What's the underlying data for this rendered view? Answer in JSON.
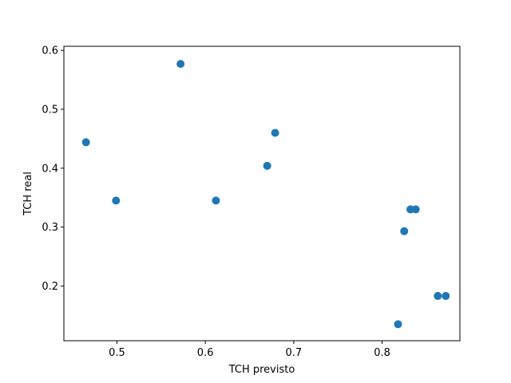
{
  "chart_data": {
    "type": "scatter",
    "title": "",
    "xlabel": "TCH previsto",
    "ylabel": "TCH real",
    "xlim": [
      0.44,
      0.888
    ],
    "ylim": [
      0.107,
      0.607
    ],
    "xticks": [
      0.5,
      0.6,
      0.7,
      0.8
    ],
    "yticks": [
      0.2,
      0.3,
      0.4,
      0.5,
      0.6
    ],
    "xtick_labels": [
      "0.5",
      "0.6",
      "0.7",
      "0.8"
    ],
    "ytick_labels": [
      "0.2",
      "0.3",
      "0.4",
      "0.5",
      "0.6"
    ],
    "grid": false,
    "marker_color": "#1f77b4",
    "points": [
      {
        "x": 0.465,
        "y": 0.444
      },
      {
        "x": 0.499,
        "y": 0.345
      },
      {
        "x": 0.572,
        "y": 0.577
      },
      {
        "x": 0.612,
        "y": 0.345
      },
      {
        "x": 0.67,
        "y": 0.404
      },
      {
        "x": 0.679,
        "y": 0.46
      },
      {
        "x": 0.818,
        "y": 0.135
      },
      {
        "x": 0.825,
        "y": 0.293
      },
      {
        "x": 0.832,
        "y": 0.33
      },
      {
        "x": 0.838,
        "y": 0.33
      },
      {
        "x": 0.863,
        "y": 0.183
      },
      {
        "x": 0.872,
        "y": 0.183
      }
    ]
  }
}
